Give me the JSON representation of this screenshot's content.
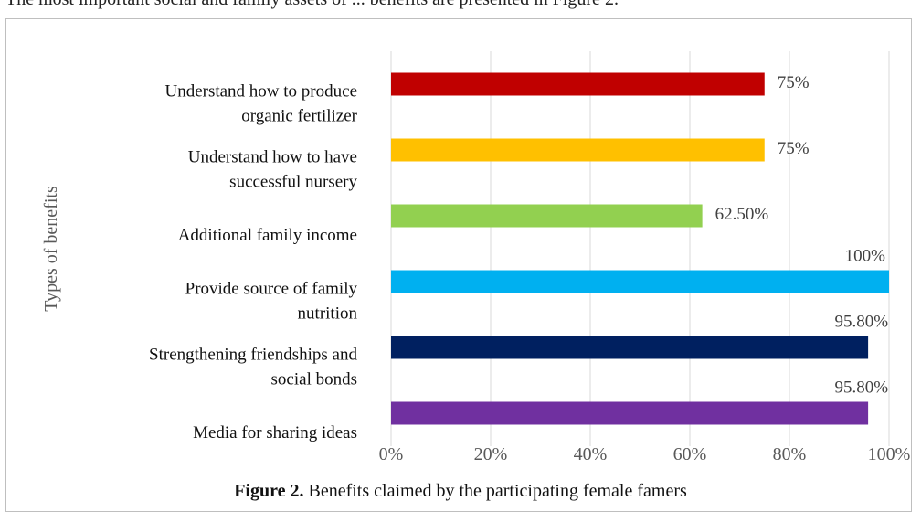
{
  "page_top_text": "The most important social and family assets of ... benefits are presented in Figure 2.",
  "caption": {
    "label": "Figure 2.",
    "text": " Benefits claimed by the participating female famers"
  },
  "chart_data": {
    "type": "bar",
    "orientation": "horizontal",
    "title": "",
    "xlabel": "",
    "ylabel": "Types of benefits",
    "xlim": [
      0,
      100
    ],
    "x_ticks": [
      "0%",
      "20%",
      "40%",
      "60%",
      "80%",
      "100%"
    ],
    "grid": true,
    "categories": [
      [
        "Understand how to produce",
        "organic fertilizer"
      ],
      [
        "Understand how to have",
        "successful nursery"
      ],
      [
        "Additional family income"
      ],
      [
        "Provide source of family",
        "nutrition"
      ],
      [
        "Strengthening friendships and",
        "social bonds"
      ],
      [
        "Media for sharing ideas"
      ]
    ],
    "values": [
      75,
      75,
      62.5,
      100,
      95.8,
      95.8
    ],
    "data_labels": [
      "75%",
      "75%",
      "62.50%",
      "100%",
      "95.80%",
      "95.80%"
    ],
    "colors": [
      "#c00000",
      "#ffc000",
      "#92d050",
      "#00b0f0",
      "#002060",
      "#7030a0"
    ]
  }
}
